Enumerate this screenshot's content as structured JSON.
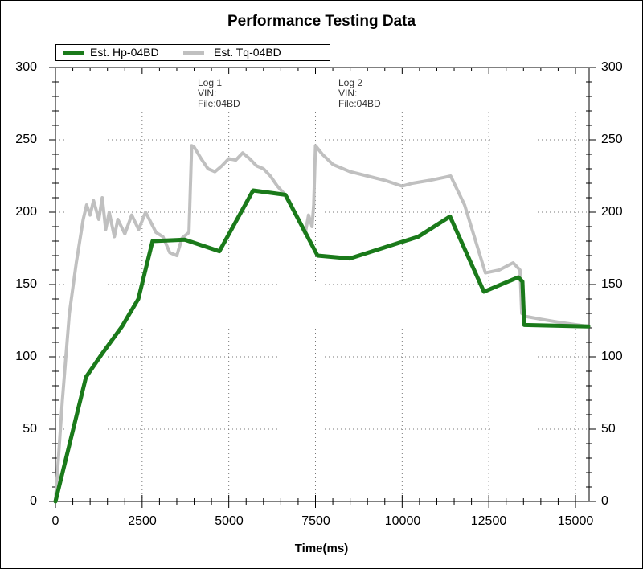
{
  "chart_data": {
    "type": "line",
    "title": "Performance Testing Data",
    "xlabel": "Time(ms)",
    "ylabel": "",
    "xlim": [
      0,
      15380
    ],
    "ylim": [
      0,
      300
    ],
    "grid": true,
    "legend_position": "top-left",
    "x_ticks": [
      "0",
      "2500",
      "5000",
      "7500",
      "10000",
      "12500",
      "15000"
    ],
    "y_ticks": [
      "0",
      "50",
      "100",
      "150",
      "200",
      "250",
      "300"
    ],
    "y2_ticks": [
      "0",
      "50",
      "100",
      "150",
      "200",
      "250",
      "300"
    ],
    "annotations": [
      {
        "x": 4000,
        "text": "Log 1\nVIN:\nFile:04BD"
      },
      {
        "x": 8100,
        "text": "Log 2\nVIN:\nFile:04BD"
      }
    ],
    "series": [
      {
        "name": "Est. Hp-04BD",
        "color": "#1a7a1a",
        "x": [
          0,
          880,
          1340,
          1920,
          2390,
          2800,
          3730,
          4730,
          5700,
          6630,
          7560,
          8490,
          10460,
          11380,
          12360,
          13350,
          13470,
          13520,
          15370
        ],
        "values": [
          0,
          86,
          102,
          121,
          140,
          180,
          181,
          173,
          215,
          212,
          170,
          168,
          183,
          197,
          145,
          155,
          152,
          122,
          121
        ]
      },
      {
        "name": "Est. Tq-04BD",
        "color": "#c0c0c0",
        "x": [
          0,
          200,
          400,
          600,
          800,
          900,
          1000,
          1100,
          1250,
          1350,
          1450,
          1550,
          1700,
          1800,
          2000,
          2200,
          2400,
          2600,
          2750,
          2900,
          3100,
          3300,
          3500,
          3650,
          3850,
          3930,
          4000,
          4200,
          4400,
          4600,
          4800,
          5000,
          5200,
          5400,
          5600,
          5800,
          6000,
          6200,
          6400,
          6700,
          7000,
          7200,
          7300,
          7400,
          7450,
          7500,
          7700,
          8000,
          8500,
          9000,
          9500,
          10000,
          10300,
          10800,
          11200,
          11400,
          11800,
          12400,
          12800,
          13200,
          13400,
          13450,
          13550,
          14000,
          14500,
          15370
        ],
        "values": [
          0,
          70,
          130,
          165,
          195,
          205,
          198,
          208,
          195,
          210,
          188,
          200,
          183,
          195,
          185,
          198,
          188,
          200,
          193,
          186,
          183,
          172,
          170,
          182,
          186,
          246,
          245,
          237,
          230,
          228,
          232,
          237,
          236,
          241,
          237,
          232,
          230,
          225,
          218,
          210,
          195,
          185,
          198,
          190,
          205,
          246,
          240,
          233,
          228,
          225,
          222,
          218,
          220,
          222,
          224,
          225,
          205,
          158,
          160,
          165,
          160,
          130,
          128,
          126,
          124,
          121
        ]
      }
    ]
  }
}
